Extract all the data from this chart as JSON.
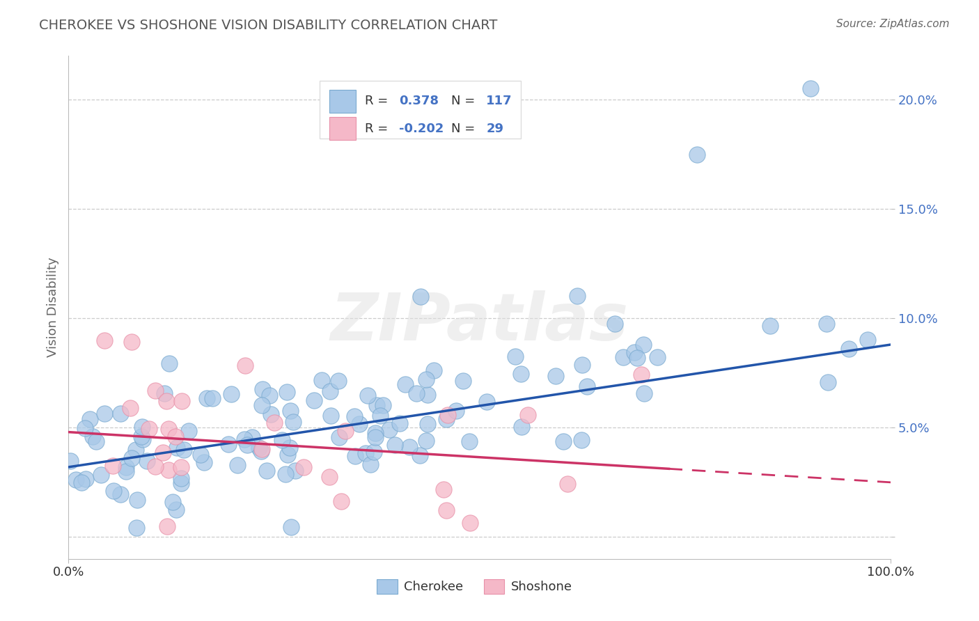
{
  "title": "CHEROKEE VS SHOSHONE VISION DISABILITY CORRELATION CHART",
  "source": "Source: ZipAtlas.com",
  "ylabel": "Vision Disability",
  "xlim": [
    0,
    100
  ],
  "ylim": [
    -1,
    22
  ],
  "cherokee_R": 0.378,
  "cherokee_N": 117,
  "shoshone_R": -0.202,
  "shoshone_N": 29,
  "cherokee_color": "#a8c8e8",
  "cherokee_edge_color": "#7aaad0",
  "shoshone_color": "#f5b8c8",
  "shoshone_edge_color": "#e890a8",
  "cherokee_line_color": "#2255aa",
  "shoshone_line_color": "#cc3366",
  "background_color": "#ffffff",
  "grid_color": "#cccccc",
  "title_color": "#444444",
  "value_color": "#4472c4",
  "label_color": "#333333",
  "cherokee_trend_x0": 0,
  "cherokee_trend_y0": 3.2,
  "cherokee_trend_x1": 100,
  "cherokee_trend_y1": 8.8,
  "shoshone_trend_x0": 0,
  "shoshone_trend_y0": 4.8,
  "shoshone_trend_x1": 100,
  "shoshone_trend_y1": 2.5,
  "shoshone_solid_end_x": 73,
  "watermark": "ZIPatlas"
}
